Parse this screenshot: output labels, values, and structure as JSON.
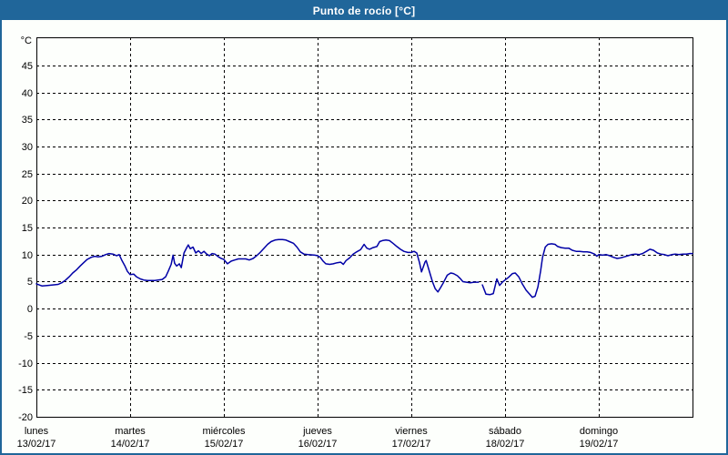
{
  "title_bar": {
    "title": "Punto de rocío [°C]"
  },
  "colors": {
    "titlebar_bg": "#20669a",
    "titlebar_text": "#ffffff",
    "frame": "#20669a",
    "chart_bg": "#fdfffc",
    "plot_border": "#000000",
    "grid": "#000000",
    "line": "#0000a6",
    "label_text": "#000000"
  },
  "chart_data": {
    "type": "line",
    "title": "Punto de rocío [°C]",
    "unit_label": "°C",
    "grid": "dashed",
    "legend": "none",
    "x_axis": {
      "unit": "hours from lunes 00:00",
      "min": 0,
      "max": 168,
      "day_tick_labels": [
        {
          "name": "lunes",
          "date": "13/02/17"
        },
        {
          "name": "martes",
          "date": "14/02/17"
        },
        {
          "name": "miércoles",
          "date": "15/02/17"
        },
        {
          "name": "jueves",
          "date": "16/02/17"
        },
        {
          "name": "viernes",
          "date": "17/02/17"
        },
        {
          "name": "sábado",
          "date": "18/02/17"
        },
        {
          "name": "domingo",
          "date": "19/02/17"
        }
      ]
    },
    "y_axis": {
      "min": -20,
      "max": 50.2,
      "tick_step": 5,
      "ticks": [
        45,
        40,
        35,
        30,
        25,
        20,
        15,
        10,
        5,
        0,
        -5,
        -10,
        -15,
        -20
      ]
    },
    "series": [
      {
        "name": "Punto de rocío",
        "color": "#0000a6",
        "points": [
          [
            0,
            4.6
          ],
          [
            1.4,
            4.2
          ],
          [
            2.8,
            4.3
          ],
          [
            4.2,
            4.4
          ],
          [
            5.6,
            4.5
          ],
          [
            6.5,
            4.8
          ],
          [
            7.5,
            5.3
          ],
          [
            8.4,
            5.9
          ],
          [
            9.3,
            6.6
          ],
          [
            10.3,
            7.2
          ],
          [
            11.2,
            7.9
          ],
          [
            12.1,
            8.5
          ],
          [
            13,
            9.1
          ],
          [
            14,
            9.5
          ],
          [
            14.9,
            9.7
          ],
          [
            15.8,
            9.6
          ],
          [
            16.8,
            9.7
          ],
          [
            17.7,
            10
          ],
          [
            18.6,
            10.2
          ],
          [
            19.6,
            10.1
          ],
          [
            20.5,
            9.8
          ],
          [
            21.2,
            10
          ],
          [
            21.9,
            8.9
          ],
          [
            22.6,
            8
          ],
          [
            23.3,
            6.9
          ],
          [
            24,
            6.3
          ],
          [
            24.9,
            6.4
          ],
          [
            25.6,
            5.9
          ],
          [
            26.6,
            5.5
          ],
          [
            27.5,
            5.3
          ],
          [
            28.4,
            5.2
          ],
          [
            30.3,
            5.2
          ],
          [
            32.2,
            5.4
          ],
          [
            33.1,
            5.9
          ],
          [
            33.8,
            7
          ],
          [
            34.5,
            8.2
          ],
          [
            35,
            9.9
          ],
          [
            35.4,
            8.4
          ],
          [
            35.9,
            7.9
          ],
          [
            36.6,
            8.3
          ],
          [
            37.1,
            7.6
          ],
          [
            37.8,
            10.3
          ],
          [
            38.5,
            11.3
          ],
          [
            38.9,
            11.8
          ],
          [
            39.4,
            11.1
          ],
          [
            40.1,
            11.4
          ],
          [
            40.8,
            10.3
          ],
          [
            41.5,
            10.7
          ],
          [
            42.2,
            10.2
          ],
          [
            42.9,
            10.6
          ],
          [
            43.6,
            10.1
          ],
          [
            44.3,
            9.8
          ],
          [
            45,
            10.2
          ],
          [
            45.7,
            10.1
          ],
          [
            46.6,
            9.6
          ],
          [
            47.3,
            9.3
          ],
          [
            48,
            9.1
          ],
          [
            48.9,
            8.3
          ],
          [
            49.9,
            8.8
          ],
          [
            50.8,
            9
          ],
          [
            51.7,
            9.2
          ],
          [
            53.6,
            9.2
          ],
          [
            54.5,
            9
          ],
          [
            55.5,
            9.3
          ],
          [
            56.4,
            9.8
          ],
          [
            57.3,
            10.4
          ],
          [
            58.3,
            11.2
          ],
          [
            59.2,
            11.9
          ],
          [
            60.1,
            12.4
          ],
          [
            61.1,
            12.7
          ],
          [
            62,
            12.8
          ],
          [
            63,
            12.8
          ],
          [
            63.9,
            12.7
          ],
          [
            64.8,
            12.4
          ],
          [
            65.8,
            12.1
          ],
          [
            66.7,
            11.4
          ],
          [
            67.6,
            10.5
          ],
          [
            68.5,
            10.1
          ],
          [
            69.5,
            10
          ],
          [
            71.3,
            9.9
          ],
          [
            72,
            9.8
          ],
          [
            72.7,
            9.5
          ],
          [
            73.4,
            8.8
          ],
          [
            74.1,
            8.3
          ],
          [
            75.1,
            8.2
          ],
          [
            76,
            8.3
          ],
          [
            77,
            8.5
          ],
          [
            77.9,
            8.6
          ],
          [
            78.6,
            8.2
          ],
          [
            79.3,
            8.9
          ],
          [
            80.2,
            9.4
          ],
          [
            81.1,
            10.1
          ],
          [
            82,
            10.5
          ],
          [
            83,
            10.9
          ],
          [
            83.9,
            11.9
          ],
          [
            84.6,
            11.2
          ],
          [
            85.3,
            11
          ],
          [
            86.2,
            11.3
          ],
          [
            87.2,
            11.5
          ],
          [
            87.9,
            12.4
          ],
          [
            88.6,
            12.6
          ],
          [
            89.5,
            12.7
          ],
          [
            90.4,
            12.6
          ],
          [
            91.3,
            12.1
          ],
          [
            92.3,
            11.5
          ],
          [
            93.2,
            11
          ],
          [
            94.1,
            10.6
          ],
          [
            95.1,
            10.4
          ],
          [
            96,
            10.4
          ],
          [
            96.7,
            10.6
          ],
          [
            97.4,
            10.3
          ],
          [
            98.1,
            8.5
          ],
          [
            98.6,
            6.8
          ],
          [
            99.5,
            8.6
          ],
          [
            99.8,
            8.9
          ],
          [
            100.5,
            7.2
          ],
          [
            101.4,
            5
          ],
          [
            102.1,
            3.7
          ],
          [
            102.8,
            3.1
          ],
          [
            103.5,
            3.9
          ],
          [
            104.2,
            4.8
          ],
          [
            105.2,
            6.2
          ],
          [
            106.1,
            6.6
          ],
          [
            106.8,
            6.5
          ],
          [
            107.8,
            6.1
          ],
          [
            108.5,
            5.6
          ],
          [
            109.2,
            5
          ],
          [
            110.1,
            4.9
          ],
          [
            111.1,
            4.8
          ],
          [
            112,
            4.9
          ],
          [
            113.2,
            4.9
          ],
          [
            113.6,
            null
          ],
          [
            114.2,
            4.4
          ],
          [
            115.1,
            2.7
          ],
          [
            116.1,
            2.6
          ],
          [
            117,
            2.8
          ],
          [
            117.9,
            5.5
          ],
          [
            118.6,
            4.3
          ],
          [
            119.3,
            4.9
          ],
          [
            120,
            5.3
          ],
          [
            120.9,
            5.8
          ],
          [
            121.9,
            6.5
          ],
          [
            122.6,
            6.6
          ],
          [
            123.5,
            5.9
          ],
          [
            124.4,
            4.6
          ],
          [
            125.4,
            3.4
          ],
          [
            126.3,
            2.7
          ],
          [
            127,
            2.1
          ],
          [
            127.7,
            2.3
          ],
          [
            128.4,
            4
          ],
          [
            129.1,
            7
          ],
          [
            129.6,
            9.5
          ],
          [
            130.3,
            11.4
          ],
          [
            131,
            11.9
          ],
          [
            131.9,
            12
          ],
          [
            132.8,
            11.9
          ],
          [
            133.5,
            11.5
          ],
          [
            134.4,
            11.3
          ],
          [
            135.4,
            11.2
          ],
          [
            136.3,
            11.2
          ],
          [
            137.2,
            10.8
          ],
          [
            138.2,
            10.6
          ],
          [
            139.1,
            10.6
          ],
          [
            140.1,
            10.5
          ],
          [
            141,
            10.5
          ],
          [
            141.9,
            10.4
          ],
          [
            142.9,
            10.1
          ],
          [
            143.5,
            9.7
          ],
          [
            144,
            10
          ],
          [
            145,
            9.9
          ],
          [
            145.9,
            10
          ],
          [
            146.8,
            9.8
          ],
          [
            147.8,
            9.5
          ],
          [
            148.7,
            9.3
          ],
          [
            149.6,
            9.4
          ],
          [
            150.6,
            9.6
          ],
          [
            151.5,
            9.8
          ],
          [
            152.4,
            10
          ],
          [
            153.4,
            10.1
          ],
          [
            154.3,
            10
          ],
          [
            155.2,
            10.2
          ],
          [
            156.2,
            10.6
          ],
          [
            157.1,
            11
          ],
          [
            158,
            10.8
          ],
          [
            159,
            10.3
          ],
          [
            159.9,
            10.1
          ],
          [
            160.8,
            10
          ],
          [
            161.7,
            9.8
          ],
          [
            162.7,
            10
          ],
          [
            163.6,
            10.1
          ],
          [
            164.5,
            10
          ],
          [
            165.5,
            10.1
          ],
          [
            166.4,
            10.1
          ],
          [
            167.3,
            10.2
          ],
          [
            168,
            10.2
          ]
        ]
      }
    ]
  }
}
